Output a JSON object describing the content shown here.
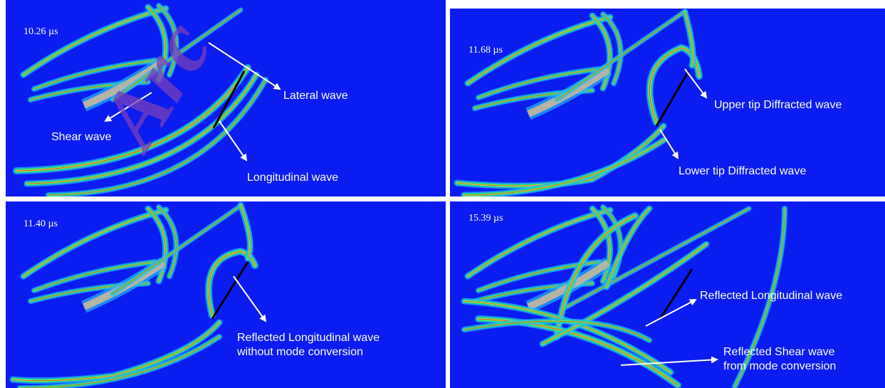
{
  "watermark": "Arc",
  "panels": [
    {
      "time": "10.26 µs",
      "annotations": [
        "Lateral wave",
        "Shear wave",
        "Longitudinal wave"
      ]
    },
    {
      "time": "11.68 µs",
      "annotations": [
        "Upper tip Diffracted wave",
        "Lower tip Diffracted wave"
      ]
    },
    {
      "time": "11.40 µs",
      "annotations": [
        "Reflected Longitudinal wave",
        "without mode conversion"
      ]
    },
    {
      "time": "15.39 µs",
      "annotations": [
        "Reflected Longitudinal wave",
        "Reflected Shear wave",
        "from mode conversion"
      ]
    }
  ]
}
